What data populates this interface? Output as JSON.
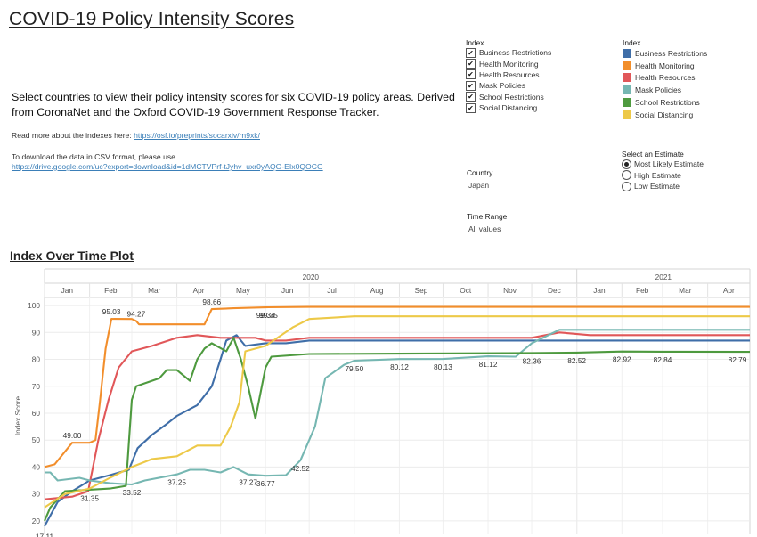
{
  "title": "COVID-19 Policy Intensity Scores",
  "description": "Select countries to view their policy intensity scores for six COVID-19 policy areas. Derived from CoronaNet and the Oxford COVID-19 Government Response Tracker.",
  "read_more": {
    "text": "Read more about the indexes here: ",
    "link": "https://osf.io/preprints/socarxiv/rn9xk/"
  },
  "download": {
    "text": "To download the data in CSV format, please use",
    "link": "https://drive.google.com/uc?export=download&id=1dMCTVPrf-tJyhv_uxr0yAQO-EIx0QOCG"
  },
  "index_filter": {
    "title": "Index",
    "items": [
      {
        "label": "Business Restrictions",
        "checked": true
      },
      {
        "label": "Health Monitoring",
        "checked": true
      },
      {
        "label": "Health Resources",
        "checked": true
      },
      {
        "label": "Mask Policies",
        "checked": true
      },
      {
        "label": "School Restrictions",
        "checked": true
      },
      {
        "label": "Social Distancing",
        "checked": true
      }
    ]
  },
  "legend": {
    "title": "Index",
    "items": [
      {
        "label": "Business Restrictions",
        "color": "#3f6ea8"
      },
      {
        "label": "Health Monitoring",
        "color": "#f28e2b"
      },
      {
        "label": "Health Resources",
        "color": "#e15759"
      },
      {
        "label": "Mask Policies",
        "color": "#76b7b2"
      },
      {
        "label": "School Restrictions",
        "color": "#4e9a3f"
      },
      {
        "label": "Social Distancing",
        "color": "#edc948"
      }
    ]
  },
  "estimate": {
    "title": "Select an Estimate",
    "options": [
      {
        "label": "Most Likely Estimate",
        "selected": true
      },
      {
        "label": "High Estimate",
        "selected": false
      },
      {
        "label": "Low Estimate",
        "selected": false
      }
    ]
  },
  "country": {
    "title": "Country",
    "value": "Japan"
  },
  "time_range": {
    "title": "Time Range",
    "value": "All values"
  },
  "plot_title": "Index Over Time Plot",
  "chart_data": {
    "type": "line",
    "ylabel": "Index Score",
    "xlabel": "",
    "ylim": [
      15,
      103
    ],
    "y_ticks": [
      20,
      30,
      40,
      50,
      60,
      70,
      80,
      90,
      100
    ],
    "x_range": [
      "2020-01-01",
      "2021-04-30"
    ],
    "years": [
      {
        "label": "2020",
        "start": "2020-01-01",
        "end": "2021-01-01"
      },
      {
        "label": "2021",
        "start": "2021-01-01",
        "end": "2021-05-01"
      }
    ],
    "months": [
      {
        "label": "Jan",
        "start": "2020-01-01",
        "end": "2020-02-01"
      },
      {
        "label": "Feb",
        "start": "2020-02-01",
        "end": "2020-03-01"
      },
      {
        "label": "Mar",
        "start": "2020-03-01",
        "end": "2020-04-01"
      },
      {
        "label": "Apr",
        "start": "2020-04-01",
        "end": "2020-05-01"
      },
      {
        "label": "May",
        "start": "2020-05-01",
        "end": "2020-06-01"
      },
      {
        "label": "Jun",
        "start": "2020-06-01",
        "end": "2020-07-01"
      },
      {
        "label": "Jul",
        "start": "2020-07-01",
        "end": "2020-08-01"
      },
      {
        "label": "Aug",
        "start": "2020-08-01",
        "end": "2020-09-01"
      },
      {
        "label": "Sep",
        "start": "2020-09-01",
        "end": "2020-10-01"
      },
      {
        "label": "Oct",
        "start": "2020-10-01",
        "end": "2020-11-01"
      },
      {
        "label": "Nov",
        "start": "2020-11-01",
        "end": "2020-12-01"
      },
      {
        "label": "Dec",
        "start": "2020-12-01",
        "end": "2021-01-01"
      },
      {
        "label": "Jan",
        "start": "2021-01-01",
        "end": "2021-02-01"
      },
      {
        "label": "Feb",
        "start": "2021-02-01",
        "end": "2021-03-01"
      },
      {
        "label": "Mar",
        "start": "2021-03-01",
        "end": "2021-04-01"
      },
      {
        "label": "Apr",
        "start": "2021-04-01",
        "end": "2021-05-01"
      }
    ],
    "series": [
      {
        "name": "Business Restrictions",
        "color": "#3f6ea8",
        "points": [
          [
            "2020-01-01",
            18
          ],
          [
            "2020-01-10",
            27
          ],
          [
            "2020-01-20",
            31
          ],
          [
            "2020-02-01",
            35
          ],
          [
            "2020-02-15",
            37
          ],
          [
            "2020-02-28",
            39
          ],
          [
            "2020-03-05",
            47
          ],
          [
            "2020-03-15",
            52
          ],
          [
            "2020-03-25",
            56
          ],
          [
            "2020-04-01",
            59
          ],
          [
            "2020-04-15",
            63
          ],
          [
            "2020-04-25",
            70
          ],
          [
            "2020-05-01",
            80
          ],
          [
            "2020-05-05",
            87
          ],
          [
            "2020-05-12",
            89
          ],
          [
            "2020-05-18",
            85
          ],
          [
            "2020-06-01",
            86
          ],
          [
            "2020-06-15",
            86
          ],
          [
            "2020-07-01",
            87
          ],
          [
            "2020-09-01",
            87
          ],
          [
            "2020-12-01",
            87
          ],
          [
            "2021-04-30",
            87
          ]
        ]
      },
      {
        "name": "Health Monitoring",
        "color": "#f28e2b",
        "points": [
          [
            "2020-01-01",
            40
          ],
          [
            "2020-01-08",
            41
          ],
          [
            "2020-01-20",
            49
          ],
          [
            "2020-02-01",
            49
          ],
          [
            "2020-02-05",
            50
          ],
          [
            "2020-02-08",
            64
          ],
          [
            "2020-02-12",
            84
          ],
          [
            "2020-02-16",
            95.03
          ],
          [
            "2020-03-01",
            95
          ],
          [
            "2020-03-04",
            94.27
          ],
          [
            "2020-03-06",
            93
          ],
          [
            "2020-04-20",
            93
          ],
          [
            "2020-04-25",
            98.66
          ],
          [
            "2020-05-10",
            99
          ],
          [
            "2020-06-01",
            99.34
          ],
          [
            "2020-06-03",
            99.35
          ],
          [
            "2020-07-01",
            99.5
          ],
          [
            "2021-04-30",
            99.5
          ]
        ]
      },
      {
        "name": "Health Resources",
        "color": "#e15759",
        "points": [
          [
            "2020-01-01",
            28
          ],
          [
            "2020-01-20",
            29
          ],
          [
            "2020-01-31",
            31
          ],
          [
            "2020-02-07",
            50
          ],
          [
            "2020-02-14",
            65
          ],
          [
            "2020-02-21",
            77
          ],
          [
            "2020-03-01",
            83
          ],
          [
            "2020-03-15",
            85
          ],
          [
            "2020-04-01",
            88
          ],
          [
            "2020-04-15",
            89
          ],
          [
            "2020-05-01",
            88
          ],
          [
            "2020-05-25",
            88
          ],
          [
            "2020-06-01",
            87
          ],
          [
            "2020-06-15",
            87
          ],
          [
            "2020-07-01",
            88
          ],
          [
            "2020-09-01",
            88
          ],
          [
            "2020-12-01",
            88
          ],
          [
            "2020-12-20",
            90
          ],
          [
            "2021-01-10",
            89
          ],
          [
            "2021-04-30",
            89
          ]
        ]
      },
      {
        "name": "Mask Policies",
        "color": "#76b7b2",
        "points": [
          [
            "2020-01-01",
            38
          ],
          [
            "2020-01-05",
            38
          ],
          [
            "2020-01-10",
            35
          ],
          [
            "2020-01-25",
            36
          ],
          [
            "2020-02-01",
            35
          ],
          [
            "2020-02-15",
            34
          ],
          [
            "2020-03-01",
            33.52
          ],
          [
            "2020-03-10",
            35
          ],
          [
            "2020-04-01",
            37.25
          ],
          [
            "2020-04-10",
            39
          ],
          [
            "2020-04-20",
            39
          ],
          [
            "2020-05-01",
            38
          ],
          [
            "2020-05-10",
            40
          ],
          [
            "2020-05-20",
            37.27
          ],
          [
            "2020-06-01",
            36.77
          ],
          [
            "2020-06-15",
            37
          ],
          [
            "2020-06-25",
            42.52
          ],
          [
            "2020-07-05",
            55
          ],
          [
            "2020-07-12",
            73
          ],
          [
            "2020-07-25",
            78
          ],
          [
            "2020-08-01",
            79.5
          ],
          [
            "2020-09-01",
            80.12
          ],
          [
            "2020-10-01",
            80.13
          ],
          [
            "2020-11-01",
            81.12
          ],
          [
            "2020-11-20",
            81
          ],
          [
            "2020-12-01",
            86
          ],
          [
            "2020-12-20",
            91
          ],
          [
            "2021-01-15",
            91
          ],
          [
            "2021-04-30",
            91
          ]
        ]
      },
      {
        "name": "School Restrictions",
        "color": "#4e9a3f",
        "points": [
          [
            "2020-01-01",
            20
          ],
          [
            "2020-01-05",
            25
          ],
          [
            "2020-01-15",
            31
          ],
          [
            "2020-02-15",
            32
          ],
          [
            "2020-02-26",
            33
          ],
          [
            "2020-03-01",
            65
          ],
          [
            "2020-03-04",
            70
          ],
          [
            "2020-03-20",
            73
          ],
          [
            "2020-03-25",
            76
          ],
          [
            "2020-04-01",
            76
          ],
          [
            "2020-04-10",
            72
          ],
          [
            "2020-04-15",
            80
          ],
          [
            "2020-04-20",
            84
          ],
          [
            "2020-04-25",
            86
          ],
          [
            "2020-05-05",
            83
          ],
          [
            "2020-05-10",
            88
          ],
          [
            "2020-05-15",
            80
          ],
          [
            "2020-05-20",
            70
          ],
          [
            "2020-05-25",
            58
          ],
          [
            "2020-06-01",
            77
          ],
          [
            "2020-06-05",
            81
          ],
          [
            "2020-07-01",
            82
          ],
          [
            "2020-09-01",
            82.12
          ],
          [
            "2020-12-01",
            82.36
          ],
          [
            "2021-01-01",
            82.52
          ],
          [
            "2021-02-01",
            82.92
          ],
          [
            "2021-03-01",
            82.84
          ],
          [
            "2021-04-30",
            82.79
          ]
        ]
      },
      {
        "name": "Social Distancing",
        "color": "#edc948",
        "points": [
          [
            "2020-01-01",
            25
          ],
          [
            "2020-01-15",
            30
          ],
          [
            "2020-02-01",
            32
          ],
          [
            "2020-02-15",
            36
          ],
          [
            "2020-03-01",
            40
          ],
          [
            "2020-03-15",
            43
          ],
          [
            "2020-04-01",
            44
          ],
          [
            "2020-04-15",
            48
          ],
          [
            "2020-05-01",
            48
          ],
          [
            "2020-05-08",
            55
          ],
          [
            "2020-05-14",
            64
          ],
          [
            "2020-05-18",
            83
          ],
          [
            "2020-06-01",
            85
          ],
          [
            "2020-06-20",
            92
          ],
          [
            "2020-07-01",
            95
          ],
          [
            "2020-08-01",
            96
          ],
          [
            "2020-12-01",
            96
          ],
          [
            "2021-04-30",
            96
          ]
        ]
      }
    ],
    "data_labels": [
      {
        "date": "2020-01-01",
        "value": 17.11,
        "text": "17.11",
        "anchor": "below"
      },
      {
        "date": "2020-01-20",
        "value": 49.0,
        "text": "49.00",
        "anchor": "above"
      },
      {
        "date": "2020-02-01",
        "value": 31.35,
        "text": "31.35",
        "anchor": "below"
      },
      {
        "date": "2020-02-16",
        "value": 95.03,
        "text": "95.03",
        "anchor": "above"
      },
      {
        "date": "2020-03-01",
        "value": 33.52,
        "text": "33.52",
        "anchor": "below"
      },
      {
        "date": "2020-03-04",
        "value": 94.27,
        "text": "94.27",
        "anchor": "above"
      },
      {
        "date": "2020-04-01",
        "value": 37.25,
        "text": "37.25",
        "anchor": "below"
      },
      {
        "date": "2020-04-25",
        "value": 98.66,
        "text": "98.66",
        "anchor": "above"
      },
      {
        "date": "2020-05-20",
        "value": 37.27,
        "text": "37.27",
        "anchor": "below"
      },
      {
        "date": "2020-06-01",
        "value": 99.34,
        "text": "99.34",
        "anchor": "below"
      },
      {
        "date": "2020-06-03",
        "value": 99.35,
        "text": "99.35",
        "anchor": "below"
      },
      {
        "date": "2020-06-01",
        "value": 36.77,
        "text": "36.77",
        "anchor": "below"
      },
      {
        "date": "2020-06-25",
        "value": 42.52,
        "text": "42.52",
        "anchor": "below"
      },
      {
        "date": "2020-08-01",
        "value": 79.5,
        "text": "79.50",
        "anchor": "below"
      },
      {
        "date": "2020-09-01",
        "value": 80.12,
        "text": "80.12",
        "anchor": "below"
      },
      {
        "date": "2020-10-01",
        "value": 80.13,
        "text": "80.13",
        "anchor": "below"
      },
      {
        "date": "2020-11-01",
        "value": 81.12,
        "text": "81.12",
        "anchor": "below"
      },
      {
        "date": "2020-12-01",
        "value": 82.36,
        "text": "82.36",
        "anchor": "below"
      },
      {
        "date": "2021-01-01",
        "value": 82.52,
        "text": "82.52",
        "anchor": "below"
      },
      {
        "date": "2021-02-01",
        "value": 82.92,
        "text": "82.92",
        "anchor": "below"
      },
      {
        "date": "2021-03-01",
        "value": 82.84,
        "text": "82.84",
        "anchor": "below"
      },
      {
        "date": "2021-04-30",
        "value": 82.79,
        "text": "82.79",
        "anchor": "below"
      }
    ]
  }
}
